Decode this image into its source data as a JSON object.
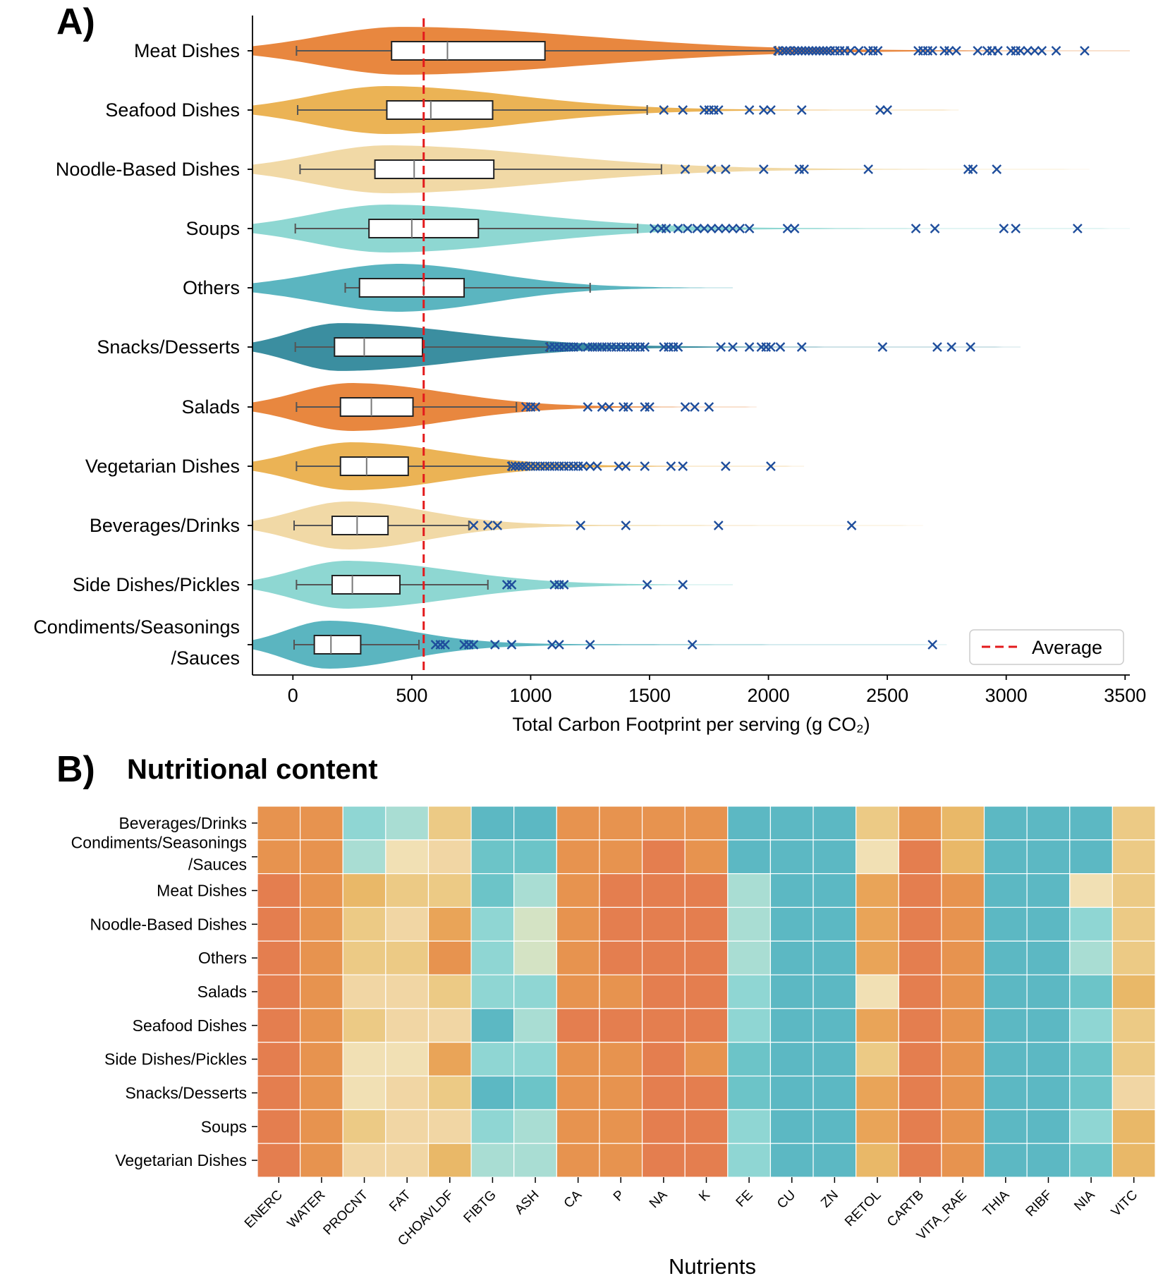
{
  "chart_data": [
    {
      "panel": "A)",
      "type": "violin",
      "title": "",
      "xlabel": "Total Carbon Footprint per serving (g CO₂)",
      "ylabel": "",
      "xlim": [
        -170,
        3520
      ],
      "x_ticks": [
        0,
        500,
        1000,
        1500,
        2000,
        2500,
        3000,
        3500
      ],
      "x_tick_labels": [
        "0",
        "500",
        "1000",
        "1500",
        "2000",
        "2500",
        "3000",
        "3500"
      ],
      "average_line": 550,
      "legend": {
        "label": "Average",
        "position": "bottom-right",
        "color": "#e31a1c"
      },
      "grid": false,
      "series": [
        {
          "name": "Meat Dishes",
          "label_lines": [
            "Meat Dishes"
          ],
          "color": "#e8873f",
          "whisker_low": 15,
          "q1": 415,
          "median": 650,
          "q3": 1060,
          "whisker_high": 2030,
          "violin_peak": 465,
          "violin_end": 3520,
          "outliers": [
            2040,
            2060,
            2075,
            2090,
            2110,
            2125,
            2140,
            2155,
            2170,
            2185,
            2200,
            2215,
            2230,
            2245,
            2260,
            2280,
            2300,
            2320,
            2345,
            2380,
            2420,
            2440,
            2460,
            2630,
            2650,
            2670,
            2690,
            2740,
            2760,
            2790,
            2880,
            2920,
            2940,
            2965,
            3020,
            3040,
            3060,
            3090,
            3120,
            3150,
            3210,
            3330
          ]
        },
        {
          "name": "Seafood Dishes",
          "label_lines": [
            "Seafood Dishes"
          ],
          "color": "#ebb355",
          "whisker_low": 20,
          "q1": 395,
          "median": 580,
          "q3": 840,
          "whisker_high": 1490,
          "violin_peak": 400,
          "violin_end": 2800,
          "outliers": [
            1560,
            1640,
            1730,
            1750,
            1770,
            1790,
            1920,
            1980,
            2010,
            2140,
            2470,
            2500
          ]
        },
        {
          "name": "Noodle-Based Dishes",
          "label_lines": [
            "Noodle-Based Dishes"
          ],
          "color": "#f1d9a6",
          "whisker_low": 30,
          "q1": 345,
          "median": 510,
          "q3": 845,
          "whisker_high": 1550,
          "violin_peak": 400,
          "violin_end": 3350,
          "outliers": [
            1650,
            1760,
            1820,
            1980,
            2130,
            2150,
            2420,
            2840,
            2860,
            2960
          ]
        },
        {
          "name": "Soups",
          "label_lines": [
            "Soups"
          ],
          "color": "#8ed7d2",
          "whisker_low": 10,
          "q1": 320,
          "median": 500,
          "q3": 780,
          "whisker_high": 1450,
          "violin_peak": 400,
          "violin_end": 3520,
          "outliers": [
            1520,
            1550,
            1570,
            1620,
            1660,
            1700,
            1730,
            1760,
            1790,
            1820,
            1850,
            1880,
            1920,
            2080,
            2110,
            2620,
            2700,
            2990,
            3040,
            3300
          ]
        },
        {
          "name": "Others",
          "label_lines": [
            "Others"
          ],
          "color": "#5bb5c0",
          "whisker_low": 220,
          "q1": 280,
          "median": 550,
          "q3": 720,
          "whisker_high": 1250,
          "violin_peak": 450,
          "violin_end": 1850,
          "outliers": []
        },
        {
          "name": "Snacks/Desserts",
          "label_lines": [
            "Snacks/Desserts"
          ],
          "color": "#3b8ea0",
          "whisker_low": 10,
          "q1": 175,
          "median": 300,
          "q3": 545,
          "whisker_high": 1070,
          "violin_peak": 200,
          "violin_end": 3060,
          "outliers": [
            1080,
            1100,
            1120,
            1140,
            1160,
            1180,
            1200,
            1240,
            1260,
            1280,
            1300,
            1320,
            1340,
            1360,
            1380,
            1400,
            1420,
            1440,
            1460,
            1480,
            1560,
            1580,
            1600,
            1620,
            1800,
            1850,
            1920,
            1970,
            1990,
            2010,
            2050,
            2140,
            2480,
            2710,
            2770,
            2850
          ]
        },
        {
          "name": "Salads",
          "label_lines": [
            "Salads"
          ],
          "color": "#e8873f",
          "whisker_low": 15,
          "q1": 200,
          "median": 330,
          "q3": 505,
          "whisker_high": 940,
          "violin_peak": 250,
          "violin_end": 1950,
          "outliers": [
            980,
            1000,
            1020,
            1240,
            1300,
            1330,
            1390,
            1410,
            1480,
            1500,
            1650,
            1690,
            1750
          ]
        },
        {
          "name": "Vegetarian Dishes",
          "label_lines": [
            "Vegetarian Dishes"
          ],
          "color": "#ebb355",
          "whisker_low": 15,
          "q1": 200,
          "median": 310,
          "q3": 485,
          "whisker_high": 910,
          "violin_peak": 250,
          "violin_end": 2150,
          "outliers": [
            920,
            935,
            950,
            965,
            980,
            1000,
            1020,
            1040,
            1060,
            1080,
            1100,
            1120,
            1140,
            1160,
            1180,
            1200,
            1220,
            1250,
            1280,
            1370,
            1400,
            1480,
            1590,
            1640,
            1820,
            2010
          ]
        },
        {
          "name": "Beverages/Drinks",
          "label_lines": [
            "Beverages/Drinks"
          ],
          "color": "#f1d9a6",
          "whisker_low": 5,
          "q1": 165,
          "median": 270,
          "q3": 400,
          "whisker_high": 740,
          "violin_peak": 230,
          "violin_end": 2650,
          "outliers": [
            760,
            820,
            860,
            1210,
            1400,
            1790,
            2350
          ]
        },
        {
          "name": "Side Dishes/Pickles",
          "label_lines": [
            "Side Dishes/Pickles"
          ],
          "color": "#8ed7d2",
          "whisker_low": 15,
          "q1": 165,
          "median": 250,
          "q3": 450,
          "whisker_high": 820,
          "violin_peak": 230,
          "violin_end": 1850,
          "outliers": [
            900,
            920,
            1100,
            1120,
            1140,
            1490,
            1640
          ]
        },
        {
          "name": "Condiments/Seasonings /Sauces",
          "label_lines": [
            "Condiments/Seasonings",
            "/Sauces"
          ],
          "color": "#5bb5c0",
          "whisker_low": 5,
          "q1": 90,
          "median": 160,
          "q3": 285,
          "whisker_high": 530,
          "violin_peak": 150,
          "violin_end": 2750,
          "outliers": [
            600,
            620,
            640,
            720,
            740,
            760,
            850,
            920,
            1090,
            1120,
            1250,
            1680,
            2690
          ]
        }
      ]
    },
    {
      "panel": "B)",
      "type": "heatmap",
      "title": "Nutritional content",
      "xlabel": "Nutrients",
      "ylabel": "",
      "grid": false,
      "columns": [
        "ENERC",
        "WATER",
        "PROCNT",
        "FAT",
        "CHOAVLDF",
        "FIBTG",
        "ASH",
        "CA",
        "P",
        "NA",
        "K",
        "FE",
        "CU",
        "ZN",
        "RETOL",
        "CARTB",
        "VITA_RAE",
        "THIA",
        "RIBF",
        "NIA",
        "VITC"
      ],
      "rows": [
        {
          "name": "Beverages/Drinks",
          "label_lines": [
            "Beverages/Drinks"
          ]
        },
        {
          "name": "Condiments/Seasonings /Sauces",
          "label_lines": [
            "Condiments/Seasonings",
            "/Sauces"
          ]
        },
        {
          "name": "Meat Dishes",
          "label_lines": [
            "Meat Dishes"
          ]
        },
        {
          "name": "Noodle-Based Dishes",
          "label_lines": [
            "Noodle-Based Dishes"
          ]
        },
        {
          "name": "Others",
          "label_lines": [
            "Others"
          ]
        },
        {
          "name": "Salads",
          "label_lines": [
            "Salads"
          ]
        },
        {
          "name": "Seafood Dishes",
          "label_lines": [
            "Seafood Dishes"
          ]
        },
        {
          "name": "Side Dishes/Pickles",
          "label_lines": [
            "Side Dishes/Pickles"
          ]
        },
        {
          "name": "Snacks/Desserts",
          "label_lines": [
            "Snacks/Desserts"
          ]
        },
        {
          "name": "Soups",
          "label_lines": [
            "Soups"
          ]
        },
        {
          "name": "Vegetarian Dishes",
          "label_lines": [
            "Vegetarian Dishes"
          ]
        }
      ],
      "palette": [
        "#5cb8c3",
        "#6cc4c8",
        "#8fd6d3",
        "#a9ddd3",
        "#d4e3c4",
        "#f1e0b4",
        "#f1d6a4",
        "#ecca85",
        "#e9b868",
        "#e9a458",
        "#e7934f",
        "#e47e4f"
      ],
      "values": [
        [
          10,
          10,
          2,
          3,
          7,
          0,
          0,
          10,
          10,
          10,
          10,
          0,
          0,
          0,
          7,
          10,
          8,
          0,
          0,
          0,
          7
        ],
        [
          10,
          10,
          3,
          5,
          6,
          1,
          1,
          10,
          10,
          11,
          10,
          0,
          0,
          0,
          5,
          11,
          8,
          0,
          0,
          0,
          7
        ],
        [
          11,
          10,
          8,
          7,
          7,
          1,
          3,
          10,
          11,
          11,
          11,
          3,
          0,
          0,
          9,
          11,
          10,
          0,
          0,
          5,
          7
        ],
        [
          11,
          10,
          7,
          6,
          9,
          2,
          4,
          10,
          11,
          11,
          11,
          3,
          0,
          0,
          9,
          11,
          10,
          0,
          0,
          2,
          7
        ],
        [
          11,
          10,
          7,
          7,
          10,
          2,
          4,
          10,
          11,
          11,
          11,
          3,
          0,
          0,
          9,
          11,
          10,
          0,
          0,
          3,
          7
        ],
        [
          11,
          10,
          6,
          6,
          7,
          2,
          2,
          10,
          10,
          11,
          11,
          2,
          0,
          0,
          5,
          11,
          10,
          0,
          0,
          1,
          8
        ],
        [
          11,
          10,
          7,
          6,
          6,
          0,
          3,
          11,
          11,
          11,
          11,
          2,
          0,
          0,
          9,
          11,
          10,
          0,
          0,
          2,
          7
        ],
        [
          11,
          10,
          5,
          5,
          9,
          2,
          2,
          10,
          10,
          11,
          10,
          1,
          0,
          0,
          7,
          11,
          10,
          0,
          0,
          1,
          7
        ],
        [
          11,
          10,
          5,
          6,
          7,
          0,
          1,
          10,
          10,
          11,
          11,
          1,
          0,
          0,
          9,
          11,
          10,
          0,
          0,
          1,
          6
        ],
        [
          11,
          10,
          7,
          6,
          6,
          2,
          3,
          10,
          10,
          11,
          11,
          2,
          0,
          0,
          9,
          11,
          10,
          0,
          0,
          2,
          8
        ],
        [
          11,
          10,
          6,
          6,
          8,
          3,
          3,
          10,
          10,
          11,
          11,
          2,
          0,
          0,
          8,
          11,
          10,
          0,
          0,
          1,
          8
        ]
      ]
    }
  ]
}
